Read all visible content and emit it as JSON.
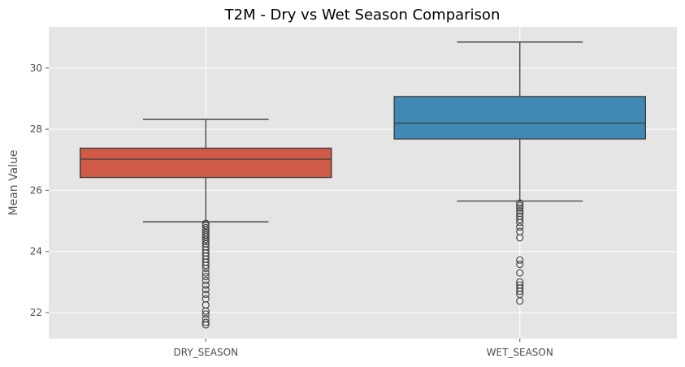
{
  "chart_data": {
    "type": "boxplot",
    "title": "T2M - Dry vs Wet Season Comparison",
    "xlabel": "",
    "ylabel": "Mean Value",
    "ylim": [
      21.15,
      31.35
    ],
    "yticks": [
      22,
      24,
      26,
      28,
      30
    ],
    "grid": true,
    "categories": [
      "DRY_SEASON",
      "WET_SEASON"
    ],
    "colors": {
      "plot_background": "#e5e5e5",
      "grid": "#ffffff",
      "DRY_SEASON": "#cf5a47",
      "WET_SEASON": "#3f89b4",
      "line": "#3d3d3d"
    },
    "series": [
      {
        "category": "DRY_SEASON",
        "whisker_low": 24.97,
        "q1": 26.42,
        "median": 27.02,
        "q3": 27.38,
        "whisker_high": 28.32,
        "outliers": [
          24.92,
          24.85,
          24.78,
          24.7,
          24.62,
          24.55,
          24.48,
          24.4,
          24.33,
          24.25,
          24.15,
          24.05,
          23.95,
          23.85,
          23.75,
          23.65,
          23.55,
          23.45,
          23.3,
          23.18,
          23.05,
          22.9,
          22.75,
          22.6,
          22.45,
          22.25,
          22.05,
          21.95,
          21.8,
          21.68,
          21.6
        ]
      },
      {
        "category": "WET_SEASON",
        "whisker_low": 25.65,
        "q1": 27.68,
        "median": 28.2,
        "q3": 29.07,
        "whisker_high": 30.85,
        "outliers": [
          25.58,
          25.5,
          25.42,
          25.33,
          25.25,
          25.15,
          25.05,
          24.95,
          24.8,
          24.65,
          24.45,
          23.72,
          23.58,
          23.3,
          23.0,
          22.9,
          22.8,
          22.7,
          22.6,
          22.38
        ]
      }
    ]
  }
}
